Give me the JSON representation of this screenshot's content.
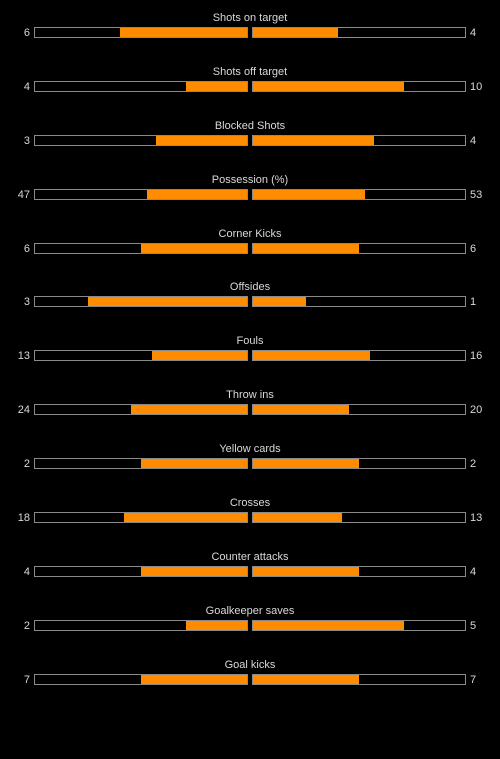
{
  "colors": {
    "background": "#000000",
    "bar_fill": "#ff8c00",
    "bar_border": "#8a8a8a",
    "text": "#d9d9d9"
  },
  "stats": [
    {
      "label": "Shots on target",
      "home": 6,
      "away": 4,
      "home_share": 0.6,
      "away_share": 0.4
    },
    {
      "label": "Shots off target",
      "home": 4,
      "away": 10,
      "home_share": 0.2857,
      "away_share": 0.7143
    },
    {
      "label": "Blocked Shots",
      "home": 3,
      "away": 4,
      "home_share": 0.4286,
      "away_share": 0.5714
    },
    {
      "label": "Possession (%)",
      "home": 47,
      "away": 53,
      "home_share": 0.47,
      "away_share": 0.53
    },
    {
      "label": "Corner Kicks",
      "home": 6,
      "away": 6,
      "home_share": 0.5,
      "away_share": 0.5
    },
    {
      "label": "Offsides",
      "home": 3,
      "away": 1,
      "home_share": 0.75,
      "away_share": 0.25
    },
    {
      "label": "Fouls",
      "home": 13,
      "away": 16,
      "home_share": 0.4483,
      "away_share": 0.5517
    },
    {
      "label": "Throw ins",
      "home": 24,
      "away": 20,
      "home_share": 0.5455,
      "away_share": 0.4545
    },
    {
      "label": "Yellow cards",
      "home": 2,
      "away": 2,
      "home_share": 0.5,
      "away_share": 0.5
    },
    {
      "label": "Crosses",
      "home": 18,
      "away": 13,
      "home_share": 0.5806,
      "away_share": 0.4194
    },
    {
      "label": "Counter attacks",
      "home": 4,
      "away": 4,
      "home_share": 0.5,
      "away_share": 0.5
    },
    {
      "label": "Goalkeeper saves",
      "home": 2,
      "away": 5,
      "home_share": 0.2857,
      "away_share": 0.7143
    },
    {
      "label": "Goal kicks",
      "home": 7,
      "away": 7,
      "home_share": 0.5,
      "away_share": 0.5
    }
  ]
}
